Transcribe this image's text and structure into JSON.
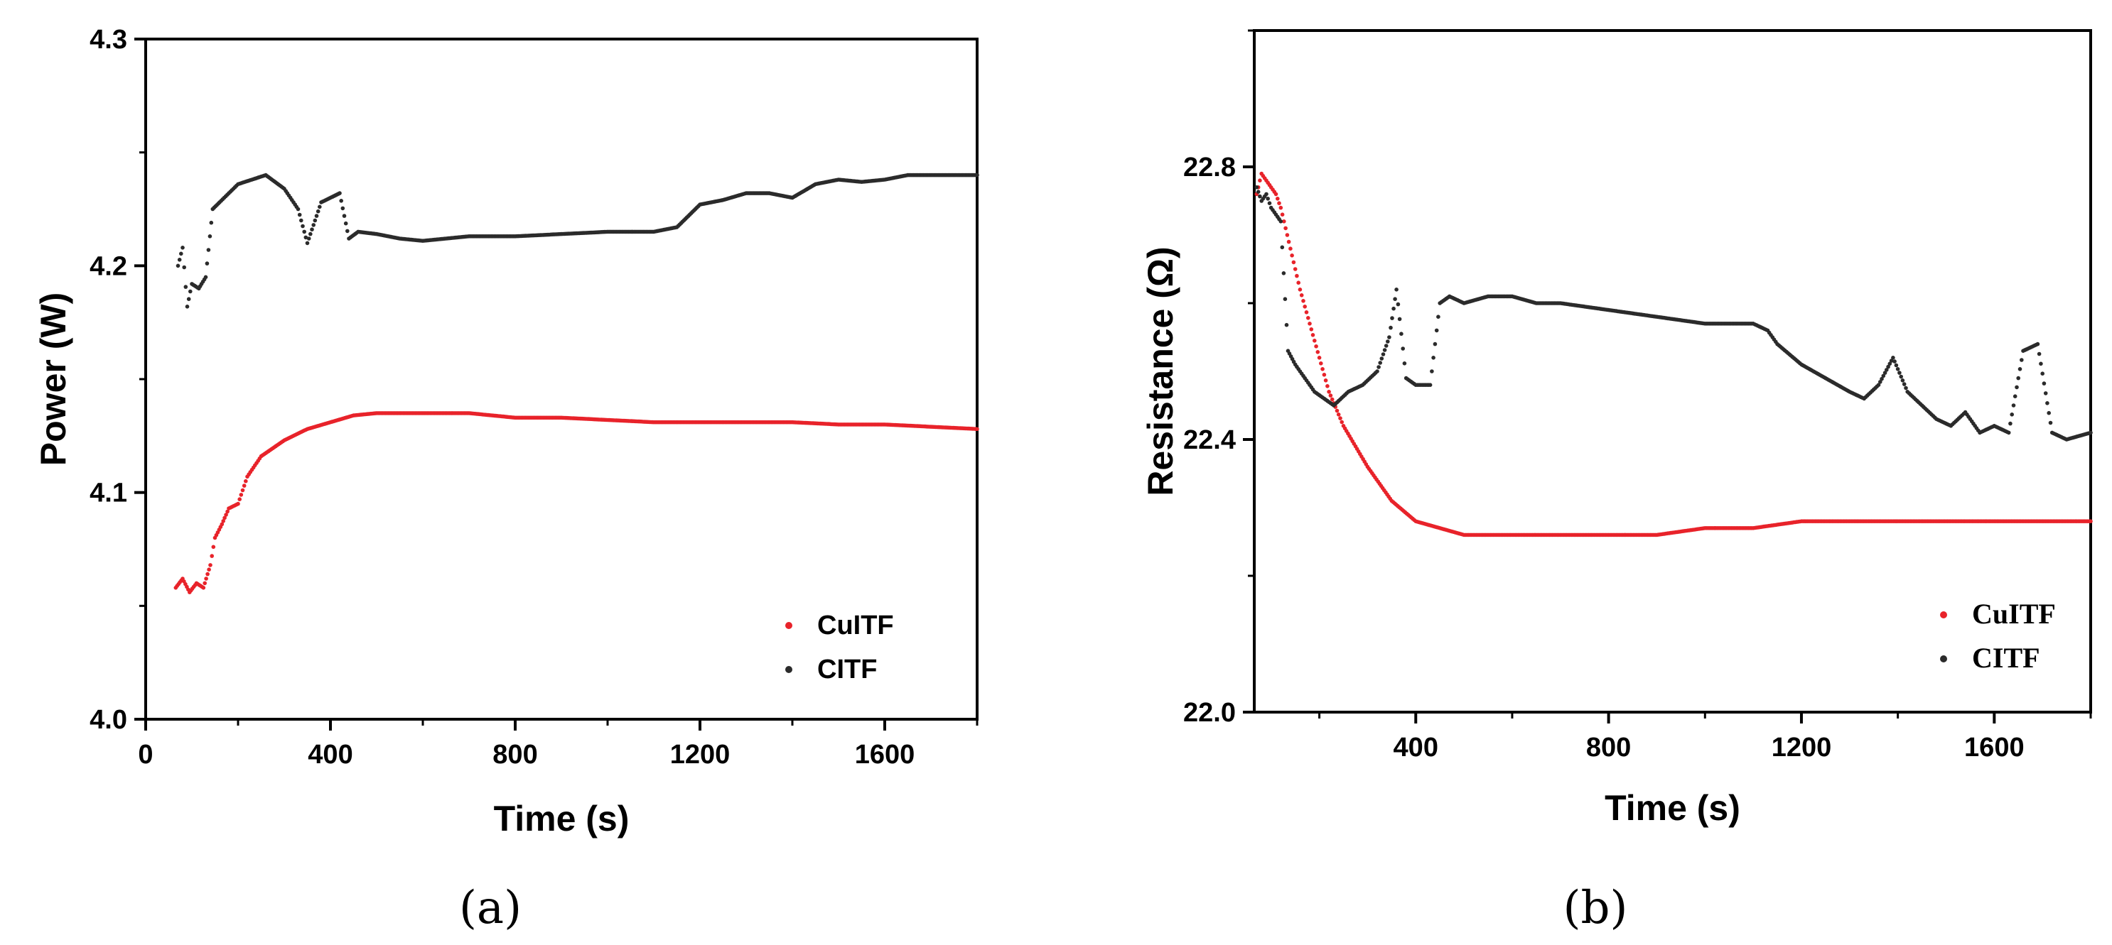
{
  "figure": {
    "colors": {
      "series_red": "#e8232a",
      "series_black": "#2b2b2b",
      "axis": "#000000"
    }
  },
  "chart_data": [
    {
      "panel": "a",
      "caption": "(a)",
      "type": "scatter",
      "title": "",
      "xlabel": "Time (s)",
      "ylabel": "Power (W)",
      "xlim": [
        0,
        1800
      ],
      "ylim": [
        4.0,
        4.3
      ],
      "xticks": [
        0,
        400,
        800,
        1200,
        1600
      ],
      "xtick_labels": [
        "0",
        "400",
        "800",
        "1200",
        "1600"
      ],
      "yticks": [
        4.0,
        4.1,
        4.2,
        4.3
      ],
      "ytick_labels": [
        "4.0",
        "4.1",
        "4.2",
        "4.3"
      ],
      "legend_position": "bottom-right",
      "series": [
        {
          "name": "CuITF",
          "color": "#e8232a",
          "x": [
            65,
            80,
            95,
            110,
            125,
            140,
            150,
            165,
            180,
            200,
            220,
            250,
            300,
            350,
            400,
            450,
            500,
            600,
            700,
            800,
            900,
            1000,
            1100,
            1200,
            1300,
            1400,
            1500,
            1600,
            1700,
            1800
          ],
          "y": [
            4.058,
            4.062,
            4.056,
            4.06,
            4.058,
            4.068,
            4.08,
            4.086,
            4.093,
            4.095,
            4.107,
            4.116,
            4.123,
            4.128,
            4.131,
            4.134,
            4.135,
            4.135,
            4.135,
            4.133,
            4.133,
            4.132,
            4.131,
            4.131,
            4.131,
            4.131,
            4.13,
            4.13,
            4.129,
            4.128
          ]
        },
        {
          "name": "CITF",
          "color": "#2b2b2b",
          "x": [
            70,
            80,
            90,
            100,
            115,
            130,
            145,
            160,
            180,
            200,
            230,
            260,
            300,
            330,
            350,
            380,
            420,
            440,
            460,
            500,
            550,
            600,
            650,
            700,
            800,
            900,
            1000,
            1100,
            1150,
            1200,
            1250,
            1300,
            1350,
            1400,
            1450,
            1500,
            1550,
            1600,
            1650,
            1700,
            1750,
            1800
          ],
          "y": [
            4.2,
            4.208,
            4.182,
            4.192,
            4.19,
            4.195,
            4.225,
            4.228,
            4.232,
            4.236,
            4.238,
            4.24,
            4.234,
            4.225,
            4.21,
            4.228,
            4.232,
            4.212,
            4.215,
            4.214,
            4.212,
            4.211,
            4.212,
            4.213,
            4.213,
            4.214,
            4.215,
            4.215,
            4.217,
            4.227,
            4.229,
            4.232,
            4.232,
            4.23,
            4.236,
            4.238,
            4.237,
            4.238,
            4.24,
            4.24,
            4.24,
            4.24
          ]
        }
      ]
    },
    {
      "panel": "b",
      "caption": "(b)",
      "type": "scatter",
      "title": "",
      "xlabel": "Time (s)",
      "ylabel": "Resistance (Ω)",
      "xlim": [
        65,
        1800
      ],
      "ylim": [
        22.0,
        23.0
      ],
      "xticks": [
        400,
        800,
        1200,
        1600
      ],
      "xtick_labels": [
        "400",
        "800",
        "1200",
        "1600"
      ],
      "yticks": [
        22.0,
        22.4,
        22.8
      ],
      "ytick_labels": [
        "22.0",
        "22.4",
        "22.8"
      ],
      "legend_position": "bottom-right",
      "series": [
        {
          "name": "CuITF",
          "color": "#e8232a",
          "x": [
            70,
            80,
            90,
            100,
            110,
            120,
            140,
            160,
            180,
            200,
            220,
            250,
            300,
            350,
            400,
            450,
            500,
            600,
            700,
            800,
            900,
            1000,
            1100,
            1200,
            1300,
            1400,
            1500,
            1600,
            1700,
            1800
          ],
          "y": [
            22.76,
            22.79,
            22.78,
            22.77,
            22.76,
            22.74,
            22.68,
            22.62,
            22.57,
            22.52,
            22.47,
            22.42,
            22.36,
            22.31,
            22.28,
            22.27,
            22.26,
            22.26,
            22.26,
            22.26,
            22.26,
            22.27,
            22.27,
            22.28,
            22.28,
            22.28,
            22.28,
            22.28,
            22.28,
            22.28
          ]
        },
        {
          "name": "CITF",
          "color": "#2b2b2b",
          "x": [
            70,
            80,
            90,
            100,
            110,
            120,
            135,
            150,
            170,
            190,
            210,
            230,
            260,
            290,
            320,
            345,
            360,
            380,
            400,
            430,
            450,
            470,
            500,
            550,
            600,
            650,
            700,
            800,
            900,
            1000,
            1050,
            1100,
            1130,
            1150,
            1200,
            1250,
            1300,
            1330,
            1360,
            1390,
            1420,
            1450,
            1480,
            1510,
            1540,
            1570,
            1600,
            1630,
            1660,
            1690,
            1720,
            1750,
            1800
          ],
          "y": [
            22.77,
            22.75,
            22.76,
            22.74,
            22.73,
            22.72,
            22.53,
            22.51,
            22.49,
            22.47,
            22.46,
            22.45,
            22.47,
            22.48,
            22.5,
            22.55,
            22.62,
            22.49,
            22.48,
            22.48,
            22.6,
            22.61,
            22.6,
            22.61,
            22.61,
            22.6,
            22.6,
            22.59,
            22.58,
            22.57,
            22.57,
            22.57,
            22.56,
            22.54,
            22.51,
            22.49,
            22.47,
            22.46,
            22.48,
            22.52,
            22.47,
            22.45,
            22.43,
            22.42,
            22.44,
            22.41,
            22.42,
            22.41,
            22.53,
            22.54,
            22.41,
            22.4,
            22.41
          ]
        }
      ]
    }
  ]
}
